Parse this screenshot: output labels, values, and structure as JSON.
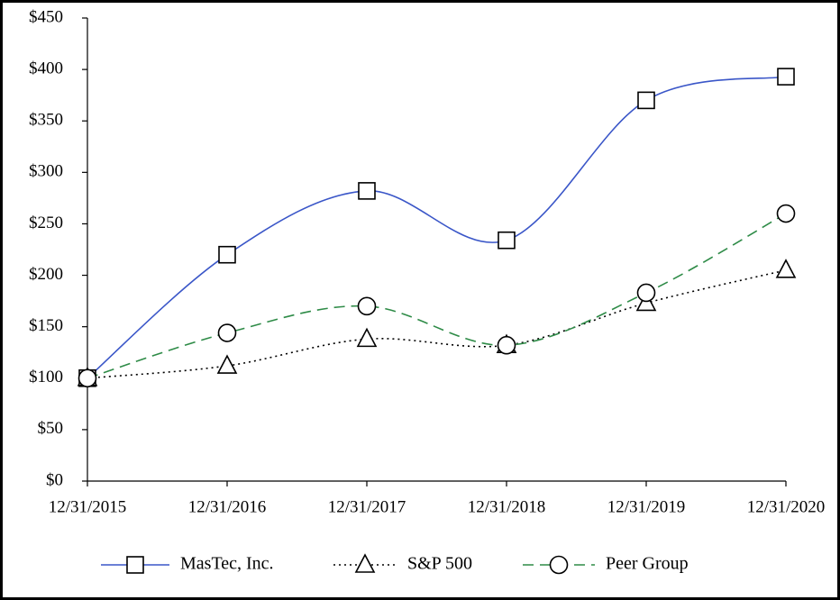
{
  "chart_data": {
    "type": "line",
    "categories": [
      "12/31/2015",
      "12/31/2016",
      "12/31/2017",
      "12/31/2018",
      "12/31/2019",
      "12/31/2020"
    ],
    "series": [
      {
        "name": "MasTec, Inc.",
        "color": "#3a56c8",
        "line_style": "solid",
        "marker": "square",
        "values": [
          100,
          220,
          282,
          234,
          370,
          393
        ]
      },
      {
        "name": "S&P 500",
        "color": "#000000",
        "line_style": "dotted",
        "marker": "triangle",
        "values": [
          100,
          112,
          138,
          132,
          173,
          205
        ]
      },
      {
        "name": "Peer Group",
        "color": "#2e8b47",
        "line_style": "dashed",
        "marker": "circle",
        "values": [
          100,
          144,
          170,
          132,
          183,
          260
        ]
      }
    ],
    "ylim": [
      0,
      450
    ],
    "yticks": [
      {
        "value": 0,
        "label": "$0"
      },
      {
        "value": 50,
        "label": "$50"
      },
      {
        "value": 100,
        "label": "$100"
      },
      {
        "value": 150,
        "label": "$150"
      },
      {
        "value": 200,
        "label": "$200"
      },
      {
        "value": 250,
        "label": "$250"
      },
      {
        "value": 300,
        "label": "$300"
      },
      {
        "value": 350,
        "label": "$350"
      },
      {
        "value": 400,
        "label": "$400"
      },
      {
        "value": 450,
        "label": "$450"
      }
    ],
    "grid": false,
    "legend": "bottom"
  }
}
